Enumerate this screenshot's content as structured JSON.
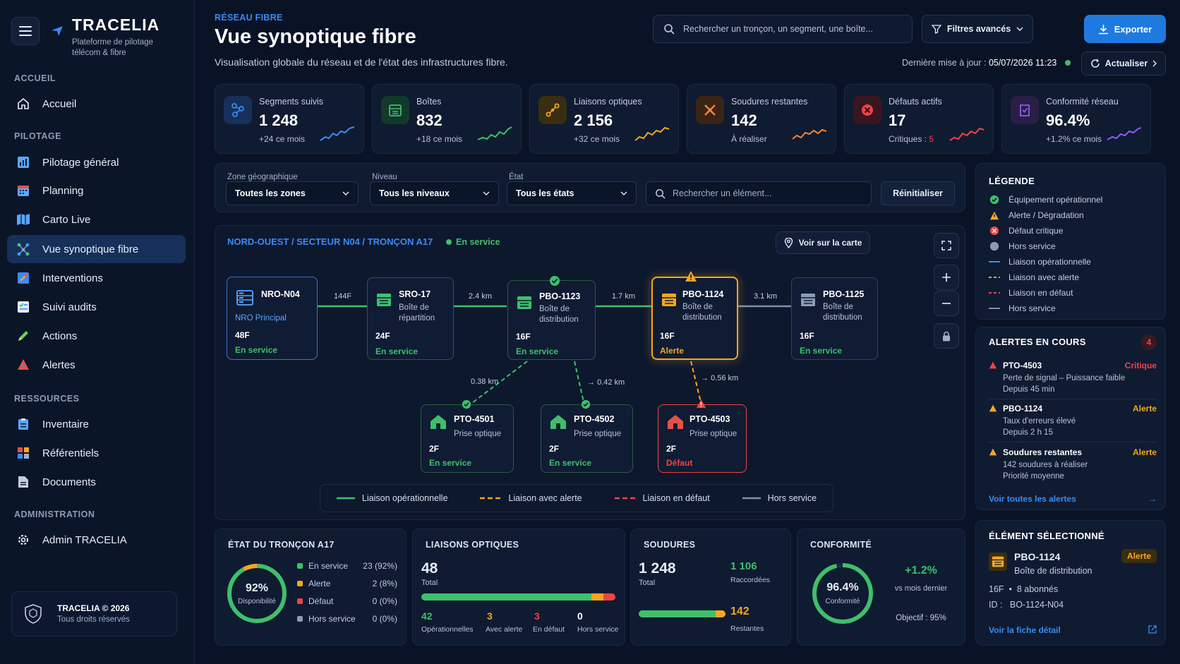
{
  "brand": {
    "name": "TRACELIA",
    "subtitle": "Plateforme de pilotage télécom & fibre"
  },
  "sidebar": {
    "sections": [
      "ACCUEIL",
      "PILOTAGE",
      "RESSOURCES",
      "ADMINISTRATION"
    ],
    "items": [
      {
        "label": "Accueil",
        "icon": "home-icon"
      },
      {
        "label": "Pilotage général",
        "icon": "chart-icon"
      },
      {
        "label": "Planning",
        "icon": "calendar-icon"
      },
      {
        "label": "Carto Live",
        "icon": "map-icon"
      },
      {
        "label": "Vue synoptique fibre",
        "icon": "network-icon"
      },
      {
        "label": "Interventions",
        "icon": "tools-icon"
      },
      {
        "label": "Suivi audits",
        "icon": "checklist-icon"
      },
      {
        "label": "Actions",
        "icon": "pencil-icon"
      },
      {
        "label": "Alertes",
        "icon": "alert-icon"
      },
      {
        "label": "Inventaire",
        "icon": "clipboard-icon"
      },
      {
        "label": "Référentiels",
        "icon": "grid-icon"
      },
      {
        "label": "Documents",
        "icon": "document-icon"
      },
      {
        "label": "Admin TRACELIA",
        "icon": "gear-icon"
      }
    ],
    "footer": {
      "title": "TRACELIA © 2026",
      "sub": "Tous droits réservés"
    }
  },
  "header": {
    "eyebrow": "RÉSEAU FIBRE",
    "title": "Vue synoptique fibre",
    "subtitle": "Visualisation globale du réseau et de l'état des infrastructures fibre.",
    "search_placeholder": "Rechercher un tronçon, un segment, une boîte...",
    "filters_label": "Filtres avancés",
    "export_label": "Exporter",
    "last_update_label": "Dernière mise à jour :",
    "last_update_value": "05/07/2026 11:23",
    "refresh_label": "Actualiser"
  },
  "kpis": [
    {
      "label": "Segments suivis",
      "value": "1 248",
      "sub": "+24 ce mois",
      "color": "#3b8bf5",
      "icon": "segments-icon"
    },
    {
      "label": "Boîtes",
      "value": "832",
      "sub": "+18 ce mois",
      "color": "#3fbf6b",
      "icon": "box-icon"
    },
    {
      "label": "Liaisons optiques",
      "value": "2 156",
      "sub": "+32 ce mois",
      "color": "#f5a623",
      "icon": "link-icon"
    },
    {
      "label": "Soudures restantes",
      "value": "142",
      "sub": "À réaliser",
      "color": "#f5863a",
      "icon": "weld-icon"
    },
    {
      "label": "Défauts actifs",
      "value": "17",
      "sub_prefix": "Critiques :",
      "sub_value": "5",
      "color": "#ef4444",
      "icon": "error-icon"
    },
    {
      "label": "Conformité réseau",
      "value": "96.4%",
      "sub": "+1.2% ce mois",
      "color": "#8b5cf6",
      "icon": "compliance-icon"
    }
  ],
  "filters": {
    "zone_label": "Zone géographique",
    "zone_value": "Toutes les zones",
    "level_label": "Niveau",
    "level_value": "Tous les niveaux",
    "state_label": "État",
    "state_value": "Tous les états",
    "search_placeholder": "Rechercher un élément...",
    "reset_label": "Réinitialiser"
  },
  "synoptic": {
    "breadcrumb": "NORD-OUEST / SECTEUR N04 / TRONÇON A17",
    "status": "En service",
    "map_button": "Voir sur la carte",
    "nodes": [
      {
        "id": "NRO-N04",
        "desc": "NRO Principal",
        "fibers": "48F",
        "status": "En service"
      },
      {
        "id": "SRO-17",
        "desc": "Boîte de répartition",
        "fibers": "24F",
        "status": "En service"
      },
      {
        "id": "PBO-1123",
        "desc": "Boîte de distribution",
        "fibers": "16F",
        "status": "En service"
      },
      {
        "id": "PBO-1124",
        "desc": "Boîte de distribution",
        "fibers": "16F",
        "status": "Alerte"
      },
      {
        "id": "PBO-1125",
        "desc": "Boîte de distribution",
        "fibers": "16F",
        "status": "En service"
      },
      {
        "id": "PTO-4501",
        "desc": "Prise optique",
        "fibers": "2F",
        "status": "En service"
      },
      {
        "id": "PTO-4502",
        "desc": "Prise optique",
        "fibers": "2F",
        "status": "En service"
      },
      {
        "id": "PTO-4503",
        "desc": "Prise optique",
        "fibers": "2F",
        "status": "Défaut"
      }
    ],
    "links": [
      "144F",
      "2.4 km",
      "1.7 km",
      "3.1 km",
      "0.38 km",
      "0.42 km",
      "0.56 km"
    ],
    "legend": [
      "Liaison opérationnelle",
      "Liaison avec alerte",
      "Liaison en défaut",
      "Hors service"
    ]
  },
  "troncon": {
    "title": "ÉTAT DU TRONÇON A17",
    "gauge_value": "92%",
    "gauge_label": "Disponibilité",
    "gauge_fraction": 0.92,
    "rows": [
      {
        "label": "En service",
        "value": "23 (92%)",
        "color": "#3fbf6b"
      },
      {
        "label": "Alerte",
        "value": "2 (8%)",
        "color": "#f5a623"
      },
      {
        "label": "Défaut",
        "value": "0 (0%)",
        "color": "#ef4444"
      },
      {
        "label": "Hors service",
        "value": "0 (0%)",
        "color": "#8c9bb3"
      }
    ]
  },
  "liaisons": {
    "title": "LIAISONS OPTIQUES",
    "total": "48",
    "total_label": "Total",
    "stats": [
      {
        "value": "42",
        "label": "Opérationnelles",
        "color": "#3fbf6b"
      },
      {
        "value": "3",
        "label": "Avec alerte",
        "color": "#f5a623"
      },
      {
        "value": "3",
        "label": "En défaut",
        "color": "#ef4444"
      },
      {
        "value": "0",
        "label": "Hors service",
        "color": "#ffffff"
      }
    ]
  },
  "soudures": {
    "title": "SOUDURES",
    "total": "1 248",
    "total_label": "Total",
    "raccordees": "1 106",
    "raccordees_label": "Raccordées",
    "restantes": "142",
    "restantes_label": "Restantes"
  },
  "conformite": {
    "title": "CONFORMITÉ",
    "value": "96.4%",
    "label": "Conformité",
    "fraction": 0.964,
    "delta": "+1.2%",
    "delta_label": "vs mois dernier",
    "objective": "Objectif : 95%"
  },
  "legend_panel": {
    "title": "LÉGENDE",
    "items": [
      "Équipement opérationnel",
      "Alerte / Dégradation",
      "Défaut critique",
      "Hors service",
      "Liaison opérationnelle",
      "Liaison avec alerte",
      "Liaison en défaut",
      "Hors service"
    ]
  },
  "alerts": {
    "title": "ALERTES EN COURS",
    "count": "4",
    "items": [
      {
        "title": "PTO-4503",
        "level": "Critique",
        "desc": "Perte de signal – Puissance faible",
        "time": "Depuis 45 min"
      },
      {
        "title": "PBO-1124",
        "level": "Alerte",
        "desc": "Taux d'erreurs élevé",
        "time": "Depuis 2 h 15"
      },
      {
        "title": "Soudures restantes",
        "level": "Alerte",
        "desc": "142 soudures à réaliser",
        "time": "Priorité moyenne"
      }
    ],
    "link": "Voir toutes les alertes"
  },
  "selected": {
    "title": "ÉLÉMENT SÉLECTIONNÉ",
    "name": "PBO-1124",
    "badge": "Alerte",
    "desc": "Boîte de distribution",
    "fibers": "16F",
    "subscribers": "8 abonnés",
    "id_label": "ID :",
    "id_value": "BO-1124-N04",
    "link": "Voir la fiche détail"
  }
}
